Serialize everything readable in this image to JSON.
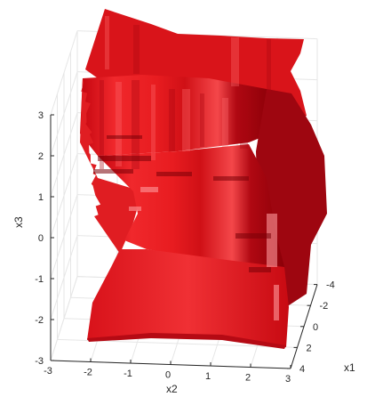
{
  "chart_data": {
    "type": "surface3d",
    "title": "",
    "xlabel": "x1",
    "ylabel": "x2",
    "zlabel": "x3",
    "xlim": [
      -4,
      4
    ],
    "ylim": [
      -3,
      3
    ],
    "zlim": [
      -3,
      3
    ],
    "x_ticks": [
      -4,
      -2,
      0,
      2,
      4
    ],
    "y_ticks": [
      -3,
      -2,
      -1,
      0,
      1,
      2,
      3
    ],
    "z_ticks": [
      -3,
      -2,
      -1,
      0,
      1,
      2,
      3
    ],
    "grid": true,
    "surface_color": "#e0191c",
    "shadow_color": "#8c0008",
    "highlight_color": "#ff8a8a",
    "grid_color": "#e6e6e6",
    "axis_color": "#262626"
  },
  "labels": {
    "x": "x1",
    "y": "x2",
    "z": "x3"
  }
}
